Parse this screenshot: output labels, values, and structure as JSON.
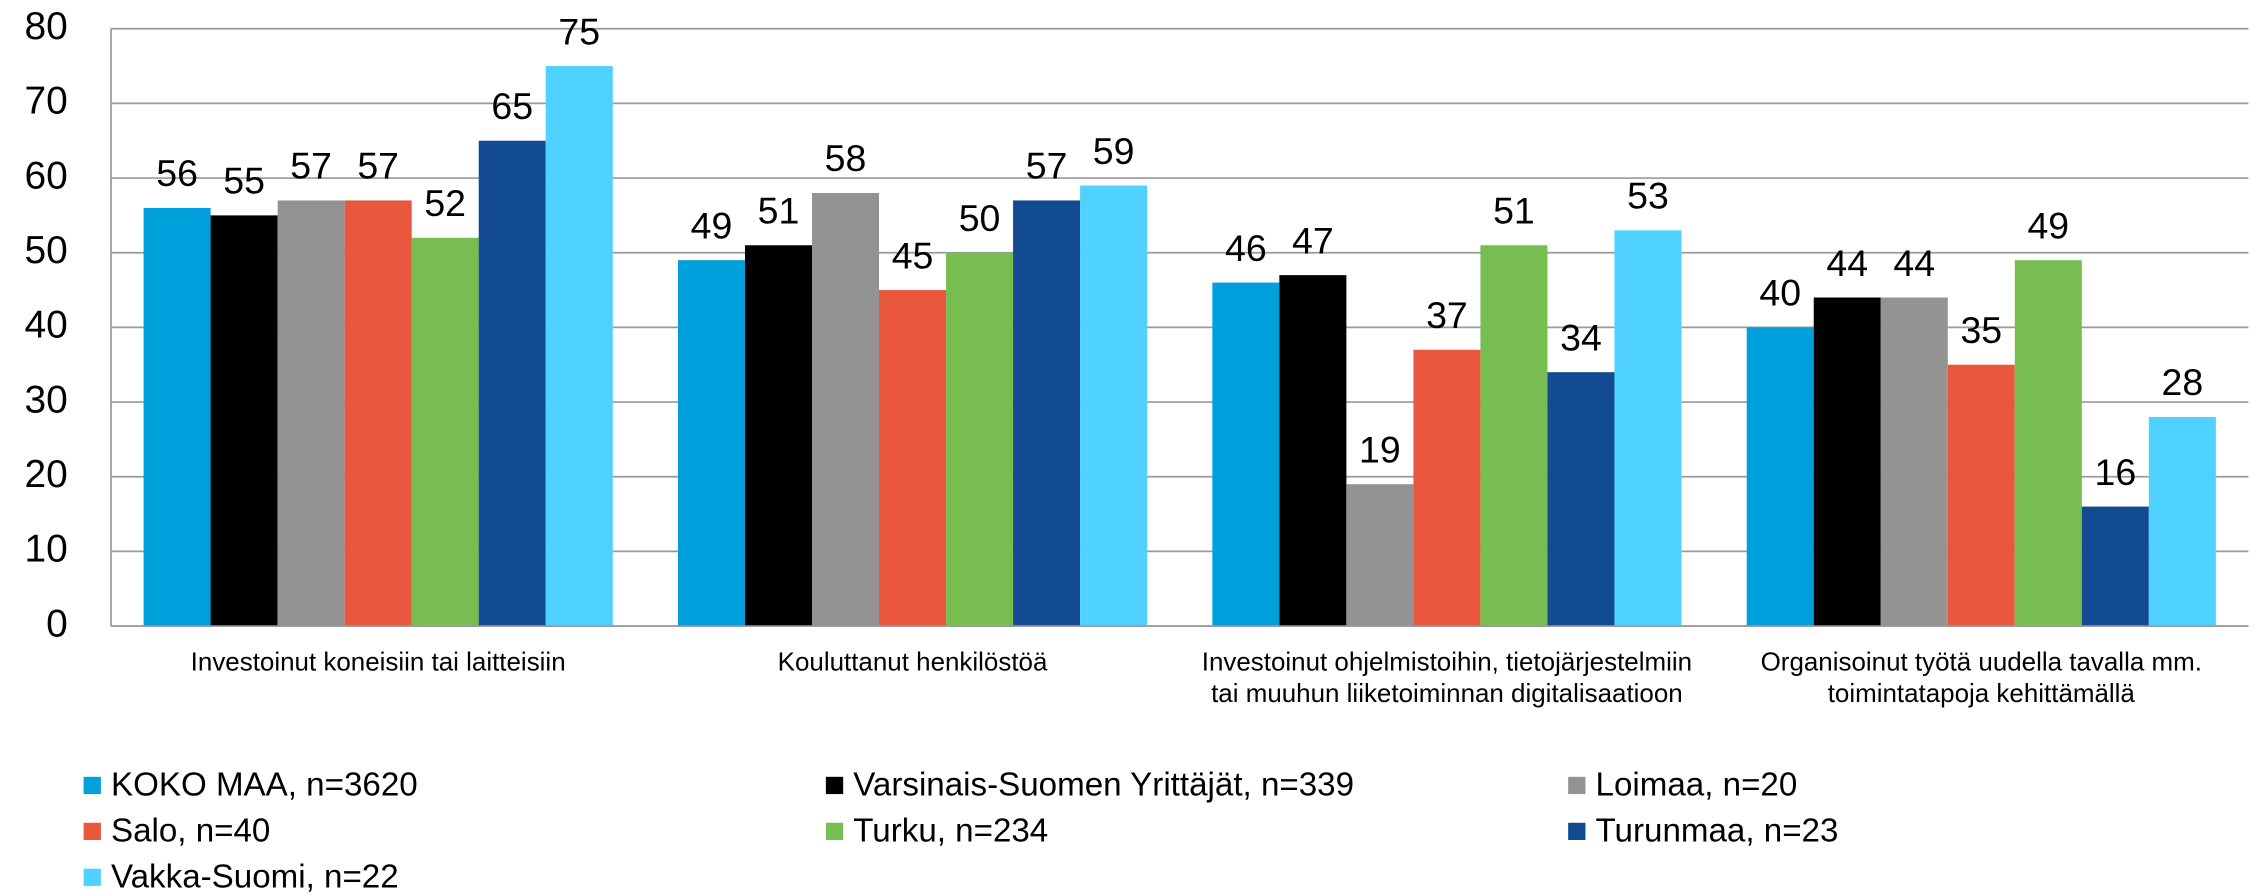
{
  "chart_data": {
    "type": "bar",
    "categories": [
      "Investoinut koneisiin tai laitteisiin",
      "Kouluttanut henkilöstöä",
      "Investoinut ohjelmistoihin, tietojärjestelmiin tai muuhun liiketoiminnan digitalisaatioon",
      "Organisoinut työtä uudella tavalla mm. toimintatapoja kehittämällä"
    ],
    "series": [
      {
        "name": "KOKO MAA, n=3620",
        "color": "#00a0dc",
        "values": [
          56,
          49,
          46,
          40
        ]
      },
      {
        "name": "Varsinais-Suomen Yrittäjät, n=339",
        "color": "#000000",
        "values": [
          55,
          51,
          47,
          44
        ]
      },
      {
        "name": "Loimaa, n=20",
        "color": "#939393",
        "values": [
          57,
          58,
          19,
          44
        ]
      },
      {
        "name": "Salo, n=40",
        "color": "#e8573e",
        "values": [
          57,
          45,
          37,
          35
        ]
      },
      {
        "name": "Turku, n=234",
        "color": "#78bd52",
        "values": [
          52,
          50,
          51,
          49
        ]
      },
      {
        "name": "Turunmaa, n=23",
        "color": "#124b91",
        "values": [
          65,
          57,
          34,
          16
        ]
      },
      {
        "name": "Vakka-Suomi, n=22",
        "color": "#4fd2ff",
        "values": [
          75,
          59,
          53,
          28
        ]
      }
    ],
    "ylim": [
      0,
      80
    ],
    "yticks": [
      0,
      10,
      20,
      30,
      40,
      50,
      60,
      70,
      80
    ],
    "grid": true,
    "legend": "bottom"
  }
}
